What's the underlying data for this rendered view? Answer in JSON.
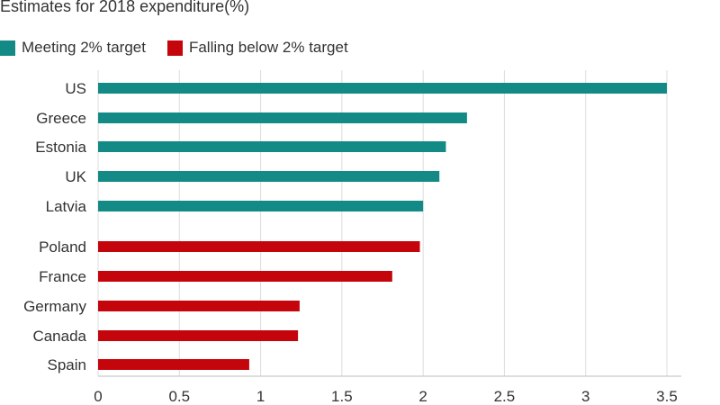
{
  "chart_data": {
    "type": "bar",
    "orientation": "horizontal",
    "title": "Estimates for 2018 expenditure",
    "title_unit": "(%)",
    "legend": [
      {
        "label": "Meeting 2% target",
        "color": "#138a85"
      },
      {
        "label": "Falling below 2% target",
        "color": "#c4050c"
      }
    ],
    "categories": [
      "US",
      "Greece",
      "Estonia",
      "UK",
      "Latvia",
      "Poland",
      "France",
      "Germany",
      "Canada",
      "Spain"
    ],
    "values": [
      3.5,
      2.27,
      2.14,
      2.1,
      2.0,
      1.98,
      1.81,
      1.24,
      1.23,
      0.93
    ],
    "groups": [
      "meeting",
      "meeting",
      "meeting",
      "meeting",
      "meeting",
      "below",
      "below",
      "below",
      "below",
      "below"
    ],
    "xlim": [
      0,
      3.5
    ],
    "xticks": [
      "0",
      "0.5",
      "1",
      "1.5",
      "2",
      "2.5",
      "3",
      "3.5"
    ],
    "grid": true,
    "legend_position": "top-left",
    "xlabel": "",
    "ylabel": ""
  }
}
